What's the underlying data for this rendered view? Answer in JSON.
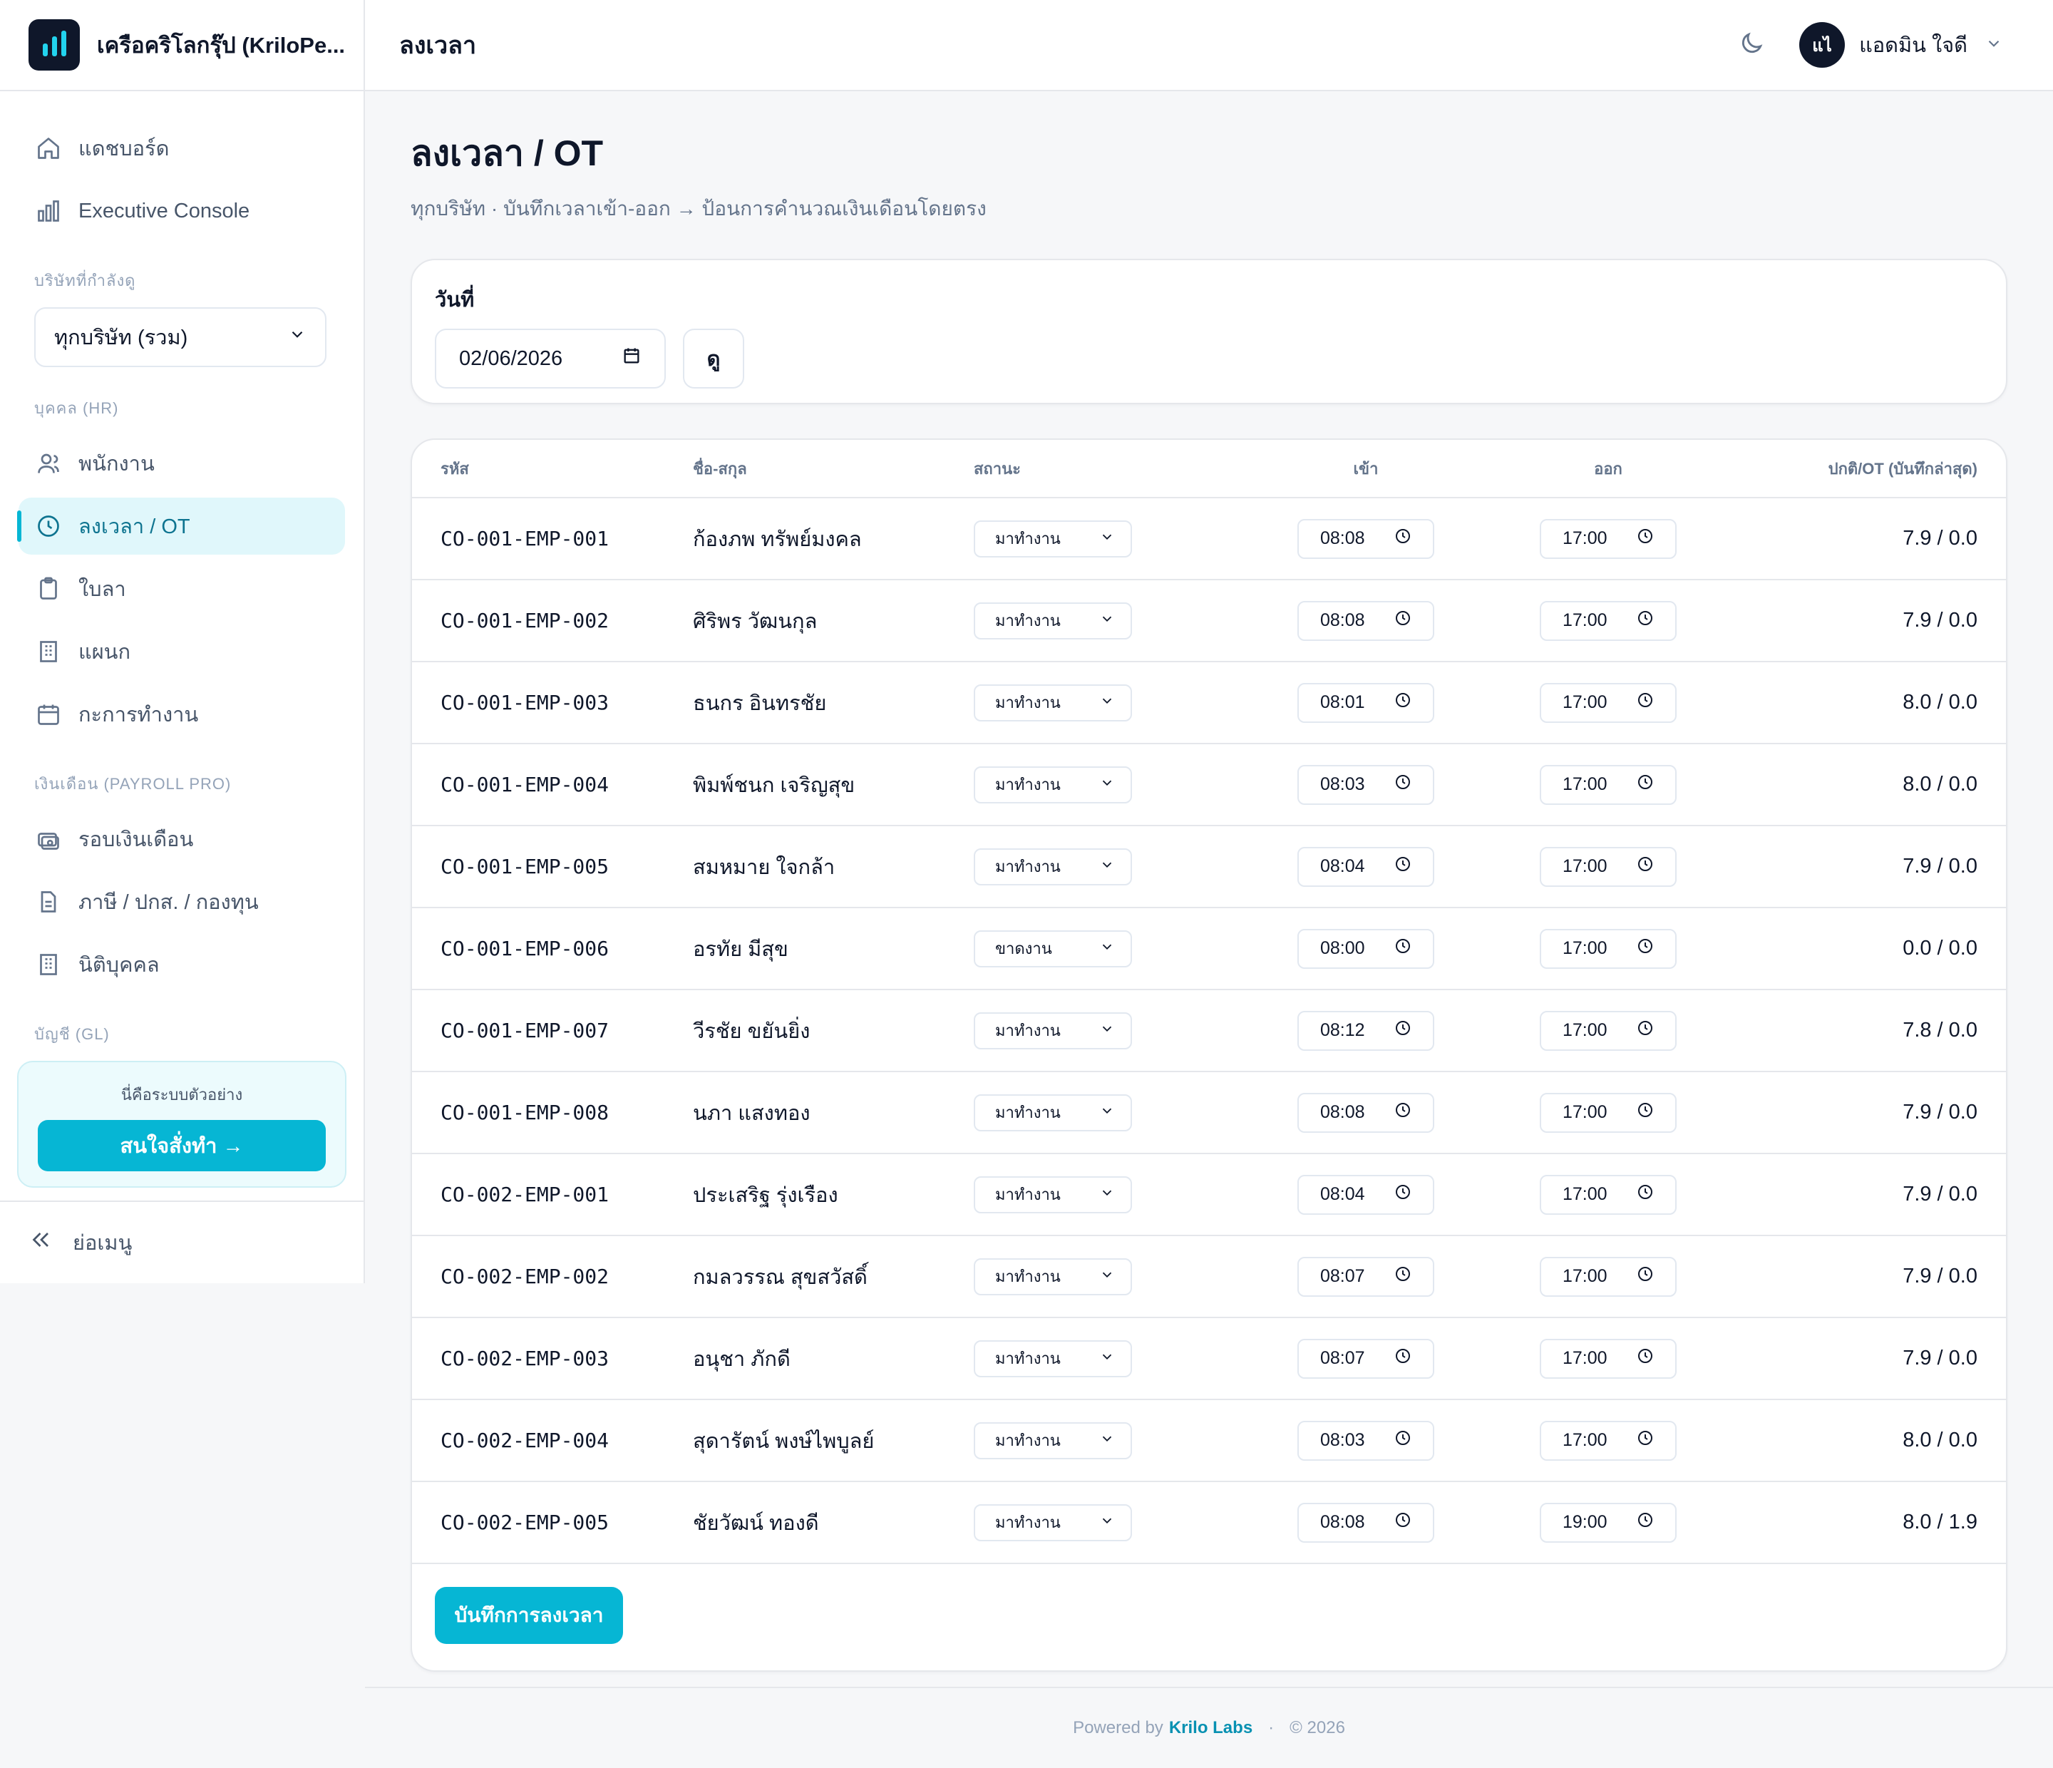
{
  "brand": {
    "name": "เครือคริโลกรุ๊ป (KriloPe..."
  },
  "topbar": {
    "title": "ลงเวลา",
    "user_initials": "แไ",
    "user_name": "แอดมิน ใจดี"
  },
  "sidebar": {
    "top_items": [
      {
        "label": "แดชบอร์ด",
        "icon": "home-icon"
      },
      {
        "label": "Executive Console",
        "icon": "bar-chart-icon"
      }
    ],
    "company_label": "บริษัทที่กำลังดู",
    "company_value": "ทุกบริษัท (รวม)",
    "hr_label": "บุคคล (HR)",
    "hr_items": [
      {
        "label": "พนักงาน",
        "icon": "users-icon"
      },
      {
        "label": "ลงเวลา / OT",
        "icon": "clock-icon",
        "active": true
      },
      {
        "label": "ใบลา",
        "icon": "clipboard-icon"
      },
      {
        "label": "แผนก",
        "icon": "building-icon"
      },
      {
        "label": "กะการทำงาน",
        "icon": "calendar-icon"
      }
    ],
    "payroll_label": "เงินเดือน (PAYROLL PRO)",
    "payroll_items": [
      {
        "label": "รอบเงินเดือน",
        "icon": "money-icon"
      },
      {
        "label": "ภาษี / ปกส. / กองทุน",
        "icon": "document-icon"
      },
      {
        "label": "นิติบุคคล",
        "icon": "building-icon"
      }
    ],
    "gl_label": "บัญชี (GL)",
    "promo_text": "นี่คือระบบตัวอย่าง",
    "promo_button": "สนใจสั่งทำ →",
    "collapse_label": "ย่อเมนู"
  },
  "page": {
    "title": "ลงเวลา / OT",
    "subtitle": "ทุกบริษัท · บันทึกเวลาเข้า-ออก → ป้อนการคำนวณเงินเดือนโดยตรง"
  },
  "filter": {
    "date_label": "วันที่",
    "date_value": "02/06/2026",
    "view_button": "ดู"
  },
  "table": {
    "headers": {
      "id": "รหัส",
      "name": "ชื่อ-สกุล",
      "status": "สถานะ",
      "in": "เข้า",
      "out": "ออก",
      "hours": "ปกติ/OT (บันทึกล่าสุด)"
    },
    "rows": [
      {
        "id": "CO-001-EMP-001",
        "name": "ก้องภพ ทรัพย์มงคล",
        "status": "มาทำงาน",
        "in": "08:08",
        "out": "17:00",
        "hours": "7.9 / 0.0"
      },
      {
        "id": "CO-001-EMP-002",
        "name": "ศิริพร วัฒนกุล",
        "status": "มาทำงาน",
        "in": "08:08",
        "out": "17:00",
        "hours": "7.9 / 0.0"
      },
      {
        "id": "CO-001-EMP-003",
        "name": "ธนกร อินทรชัย",
        "status": "มาทำงาน",
        "in": "08:01",
        "out": "17:00",
        "hours": "8.0 / 0.0"
      },
      {
        "id": "CO-001-EMP-004",
        "name": "พิมพ์ชนก เจริญสุข",
        "status": "มาทำงาน",
        "in": "08:03",
        "out": "17:00",
        "hours": "8.0 / 0.0"
      },
      {
        "id": "CO-001-EMP-005",
        "name": "สมหมาย ใจกล้า",
        "status": "มาทำงาน",
        "in": "08:04",
        "out": "17:00",
        "hours": "7.9 / 0.0"
      },
      {
        "id": "CO-001-EMP-006",
        "name": "อรทัย มีสุข",
        "status": "ขาดงาน",
        "in": "08:00",
        "out": "17:00",
        "hours": "0.0 / 0.0"
      },
      {
        "id": "CO-001-EMP-007",
        "name": "วีรชัย ขยันยิ่ง",
        "status": "มาทำงาน",
        "in": "08:12",
        "out": "17:00",
        "hours": "7.8 / 0.0"
      },
      {
        "id": "CO-001-EMP-008",
        "name": "นภา แสงทอง",
        "status": "มาทำงาน",
        "in": "08:08",
        "out": "17:00",
        "hours": "7.9 / 0.0"
      },
      {
        "id": "CO-002-EMP-001",
        "name": "ประเสริฐ รุ่งเรือง",
        "status": "มาทำงาน",
        "in": "08:04",
        "out": "17:00",
        "hours": "7.9 / 0.0"
      },
      {
        "id": "CO-002-EMP-002",
        "name": "กมลวรรณ สุขสวัสดิ์",
        "status": "มาทำงาน",
        "in": "08:07",
        "out": "17:00",
        "hours": "7.9 / 0.0"
      },
      {
        "id": "CO-002-EMP-003",
        "name": "อนุชา ภักดี",
        "status": "มาทำงาน",
        "in": "08:07",
        "out": "17:00",
        "hours": "7.9 / 0.0"
      },
      {
        "id": "CO-002-EMP-004",
        "name": "สุดารัตน์ พงษ์ไพบูลย์",
        "status": "มาทำงาน",
        "in": "08:03",
        "out": "17:00",
        "hours": "8.0 / 0.0"
      },
      {
        "id": "CO-002-EMP-005",
        "name": "ชัยวัฒน์ ทองดี",
        "status": "มาทำงาน",
        "in": "08:08",
        "out": "19:00",
        "hours": "8.0 / 1.9"
      }
    ],
    "save_button": "บันทึกการลงเวลา"
  },
  "footer": {
    "powered": "Powered by",
    "brand": "Krilo Labs",
    "sep": "·",
    "year": "© 2026"
  },
  "colors": {
    "accent": "#06b6d4",
    "dark": "#0f172a",
    "muted": "#64748b"
  }
}
